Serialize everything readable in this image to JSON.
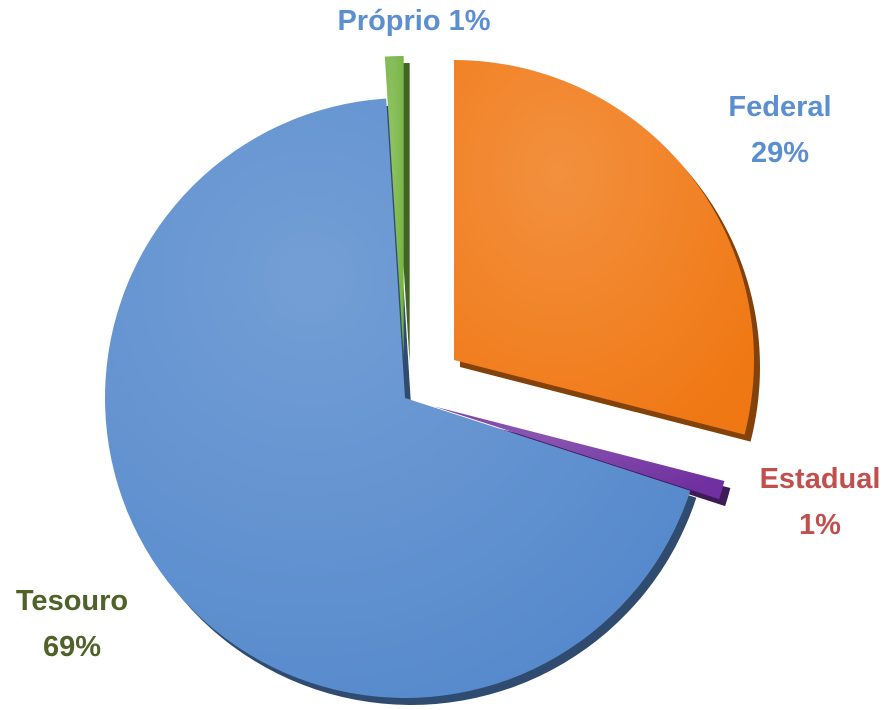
{
  "chart_data": {
    "type": "pie",
    "categories": [
      "Federal",
      "Estadual",
      "Tesouro",
      "Próprio"
    ],
    "values": [
      29,
      1,
      69,
      1
    ],
    "value_labels": [
      "29%",
      "1%",
      "69%",
      "1%"
    ],
    "colors": [
      "#f07814",
      "#7030a0",
      "#5589cc",
      "#76b442"
    ],
    "label_colors": [
      "#5b8fd0",
      "#c0504d",
      "#4f6228",
      "#5b8fd0"
    ]
  }
}
